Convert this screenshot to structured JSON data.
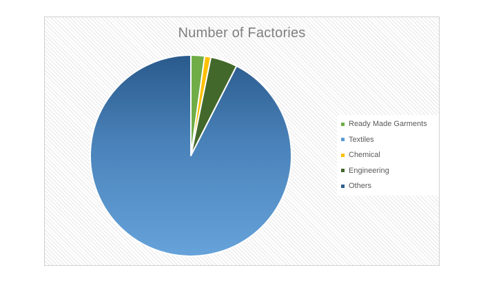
{
  "chart_data": {
    "type": "pie",
    "title": "Number of Factories",
    "legend_position": "right",
    "slices": [
      {
        "label": "Ready Made Garments",
        "value": 2.2,
        "color": "#70ad47"
      },
      {
        "label": "Textiles",
        "value": 0,
        "color": "#5b9bd5"
      },
      {
        "label": "Chemical",
        "value": 1.0,
        "color": "#ffc000"
      },
      {
        "label": "Engineering",
        "value": 4.3,
        "color": "#43682b"
      },
      {
        "label": "Others",
        "value": 92.5,
        "color": "#2e5e91"
      }
    ]
  }
}
